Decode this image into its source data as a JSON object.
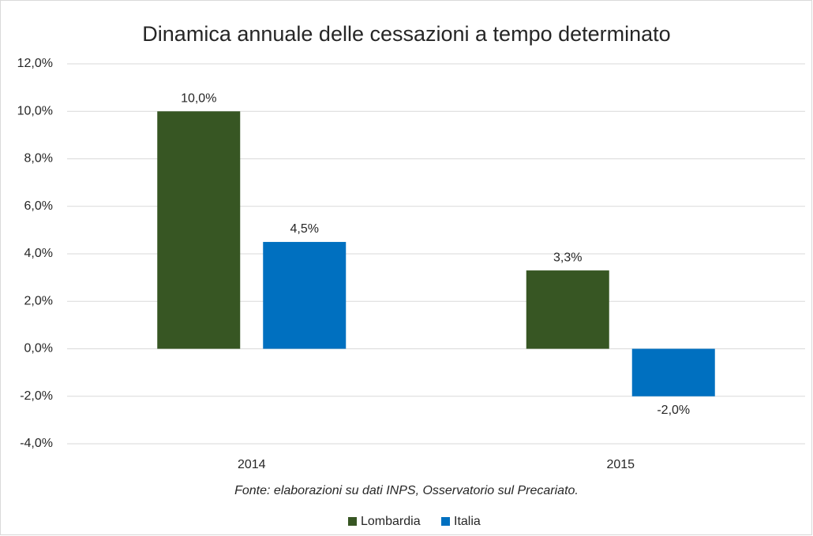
{
  "chart_data": {
    "type": "bar",
    "title": "Dinamica annuale delle cessazioni a tempo determinato",
    "note": "Fonte: elaborazioni su dati INPS, Osservatorio sul Precariato.",
    "categories": [
      "2014",
      "2015"
    ],
    "series": [
      {
        "name": "Lombardia",
        "color": "#375623",
        "values": [
          10.0,
          3.3
        ],
        "value_labels": [
          "10,0%",
          "3,3%"
        ]
      },
      {
        "name": "Italia",
        "color": "#0070c0",
        "values": [
          4.5,
          -2.0
        ],
        "value_labels": [
          "4,5%",
          "-2,0%"
        ]
      }
    ],
    "ylim": [
      -4,
      12
    ],
    "yticks": [
      {
        "value": -4,
        "label": "-4,0%"
      },
      {
        "value": -2,
        "label": "-2,0%"
      },
      {
        "value": 0,
        "label": "0,0%"
      },
      {
        "value": 2,
        "label": "2,0%"
      },
      {
        "value": 4,
        "label": "4,0%"
      },
      {
        "value": 6,
        "label": "6,0%"
      },
      {
        "value": 8,
        "label": "8,0%"
      },
      {
        "value": 10,
        "label": "10,0%"
      },
      {
        "value": 12,
        "label": "12,0%"
      }
    ],
    "grid": true,
    "legend": "bottom"
  }
}
